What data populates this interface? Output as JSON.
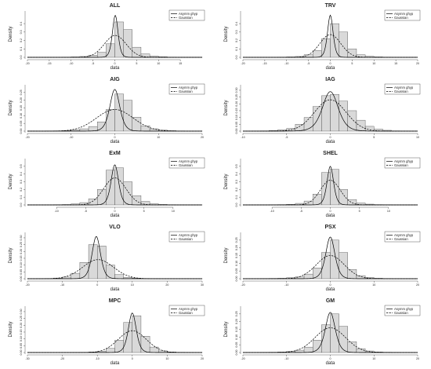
{
  "chart_data": [
    {
      "type": "histogram",
      "title": "ALL",
      "xlabel": "data",
      "ylabel": "Density",
      "xlim": [
        -20,
        20
      ],
      "x_ticks": [
        "-20",
        "-15",
        "-10",
        "-5",
        "0",
        "5",
        "10",
        "15"
      ],
      "y_ticks": [
        "0.0",
        "0.1",
        "0.2",
        "0.3",
        "0.4"
      ],
      "ylim": [
        0,
        0.55
      ],
      "bins": [
        -20,
        -18,
        -16,
        -14,
        -12,
        -10,
        -8,
        -6,
        -4,
        -2,
        0,
        2,
        4,
        6,
        8,
        10,
        12,
        14,
        16,
        18,
        20
      ],
      "density": [
        0.0005,
        0.0005,
        0.001,
        0.001,
        0.002,
        0.005,
        0.01,
        0.025,
        0.06,
        0.16,
        0.42,
        0.33,
        0.12,
        0.04,
        0.015,
        0.006,
        0.002,
        0.001,
        0.0005,
        0.0005
      ],
      "curves": [
        {
          "name": "Asymm ghyp",
          "style": "solid",
          "mu": 0.1,
          "scale": 0.85,
          "peak": 0.5
        },
        {
          "name": "Gaussian",
          "style": "dashed",
          "mu": 0.1,
          "sd": 2.5,
          "peak": 0.26
        }
      ],
      "legend_position": "top-right"
    },
    {
      "type": "histogram",
      "title": "TRV",
      "xlabel": "data",
      "ylabel": "Density",
      "xlim": [
        -20,
        20
      ],
      "x_ticks": [
        "-20",
        "-15",
        "-10",
        "-5",
        "0",
        "5",
        "10",
        "15",
        "20"
      ],
      "y_ticks": [
        "0.0",
        "0.1",
        "0.2",
        "0.3",
        "0.4"
      ],
      "ylim": [
        0,
        0.55
      ],
      "bins": [
        -20,
        -18,
        -16,
        -14,
        -12,
        -10,
        -8,
        -6,
        -4,
        -2,
        0,
        2,
        4,
        6,
        8,
        10,
        12,
        14,
        16,
        18,
        20
      ],
      "density": [
        0.0005,
        0.0005,
        0.001,
        0.001,
        0.002,
        0.005,
        0.01,
        0.03,
        0.08,
        0.22,
        0.4,
        0.3,
        0.1,
        0.03,
        0.012,
        0.005,
        0.002,
        0.001,
        0.0005,
        0.0005
      ],
      "curves": [
        {
          "name": "Asymm ghyp",
          "style": "solid",
          "mu": 0.0,
          "scale": 0.85,
          "peak": 0.5
        },
        {
          "name": "Gaussian",
          "style": "dashed",
          "mu": 0.0,
          "sd": 2.4,
          "peak": 0.27
        }
      ],
      "legend_position": "top-right"
    },
    {
      "type": "histogram",
      "title": "AIG",
      "xlabel": "data",
      "ylabel": "Density",
      "xlim": [
        -20,
        20
      ],
      "x_ticks": [
        "-20",
        "-10",
        "0",
        "10",
        "20"
      ],
      "y_ticks": [
        "0.00",
        "0.05",
        "0.10",
        "0.15",
        "0.20",
        "0.25"
      ],
      "ylim": [
        0,
        0.3
      ],
      "bins": [
        -20,
        -18,
        -16,
        -14,
        -12,
        -10,
        -8,
        -6,
        -4,
        -2,
        0,
        2,
        4,
        6,
        8,
        10,
        12,
        14,
        16,
        18,
        20
      ],
      "density": [
        0.0005,
        0.0005,
        0.001,
        0.002,
        0.004,
        0.008,
        0.015,
        0.03,
        0.06,
        0.14,
        0.24,
        0.2,
        0.09,
        0.035,
        0.015,
        0.006,
        0.003,
        0.001,
        0.0005,
        0.0005
      ],
      "curves": [
        {
          "name": "Asymm ghyp",
          "style": "solid",
          "mu": 0.0,
          "scale": 1.5,
          "peak": 0.27
        },
        {
          "name": "Gaussian",
          "style": "dashed",
          "mu": 0.0,
          "sd": 4.2,
          "peak": 0.14
        }
      ],
      "legend_position": "top-right"
    },
    {
      "type": "histogram",
      "title": "IAG",
      "xlabel": "data",
      "ylabel": "Density",
      "xlim": [
        -10,
        10
      ],
      "x_ticks": [
        "-10",
        "-5",
        "0",
        "5",
        "10"
      ],
      "y_ticks": [
        "0.00",
        "0.05",
        "0.10",
        "0.15",
        "0.20",
        "0.25",
        "0.30"
      ],
      "ylim": [
        0,
        0.34
      ],
      "bins": [
        -10,
        -9,
        -8,
        -7,
        -6,
        -5,
        -4,
        -3,
        -2,
        -1,
        0,
        1,
        2,
        3,
        4,
        5,
        6,
        7,
        8,
        9,
        10
      ],
      "density": [
        0.0005,
        0.001,
        0.002,
        0.005,
        0.01,
        0.02,
        0.05,
        0.1,
        0.18,
        0.26,
        0.27,
        0.22,
        0.15,
        0.08,
        0.035,
        0.015,
        0.006,
        0.002,
        0.001,
        0.0005
      ],
      "curves": [
        {
          "name": "Asymm ghyp",
          "style": "solid",
          "mu": 0.0,
          "scale": 1.2,
          "peak": 0.29
        },
        {
          "name": "Gaussian",
          "style": "dashed",
          "mu": 0.0,
          "sd": 1.8,
          "peak": 0.23
        }
      ],
      "legend_position": "top-right"
    },
    {
      "type": "histogram",
      "title": "ExM",
      "xlabel": "data",
      "ylabel": "Density",
      "xlim": [
        -15,
        15
      ],
      "x_ticks": [
        "-10",
        "-5",
        "0",
        "5",
        "10"
      ],
      "y_ticks": [
        "0.0",
        "0.1",
        "0.2",
        "0.3",
        "0.4",
        "0.5"
      ],
      "ylim": [
        0,
        0.6
      ],
      "bins": [
        -15,
        -13.5,
        -12,
        -10.5,
        -9,
        -7.5,
        -6,
        -4.5,
        -3,
        -1.5,
        0,
        1.5,
        3,
        4.5,
        6,
        7.5,
        9,
        10.5,
        12,
        13.5,
        15
      ],
      "density": [
        0.0005,
        0.0005,
        0.001,
        0.002,
        0.005,
        0.012,
        0.03,
        0.08,
        0.2,
        0.45,
        0.48,
        0.3,
        0.12,
        0.045,
        0.015,
        0.006,
        0.002,
        0.001,
        0.0005,
        0.0005
      ],
      "curves": [
        {
          "name": "Asymm ghyp",
          "style": "solid",
          "mu": 0.0,
          "scale": 0.85,
          "peak": 0.52
        },
        {
          "name": "Gaussian",
          "style": "dashed",
          "mu": 0.0,
          "sd": 1.9,
          "peak": 0.35
        }
      ],
      "legend_position": "top-right"
    },
    {
      "type": "histogram",
      "title": "SHEL",
      "xlabel": "data",
      "ylabel": "Density",
      "xlim": [
        -15,
        15
      ],
      "x_ticks": [
        "-10",
        "-5",
        "0",
        "5",
        "10"
      ],
      "y_ticks": [
        "0.0",
        "0.1",
        "0.2",
        "0.3",
        "0.4",
        "0.5"
      ],
      "ylim": [
        0,
        0.6
      ],
      "bins": [
        -15,
        -13.5,
        -12,
        -10.5,
        -9,
        -7.5,
        -6,
        -4.5,
        -3,
        -1.5,
        0,
        1.5,
        3,
        4.5,
        6,
        7.5,
        9,
        10.5,
        12,
        13.5,
        15
      ],
      "density": [
        0.0005,
        0.0005,
        0.001,
        0.002,
        0.004,
        0.008,
        0.02,
        0.05,
        0.14,
        0.42,
        0.46,
        0.2,
        0.07,
        0.025,
        0.01,
        0.004,
        0.002,
        0.001,
        0.0005,
        0.0005
      ],
      "curves": [
        {
          "name": "Asymm ghyp",
          "style": "solid",
          "mu": 0.0,
          "scale": 0.75,
          "peak": 0.5
        },
        {
          "name": "Gaussian",
          "style": "dashed",
          "mu": 0.0,
          "sd": 1.7,
          "peak": 0.32
        }
      ],
      "legend_position": "top-right"
    },
    {
      "type": "histogram",
      "title": "VLO",
      "xlabel": "data",
      "ylabel": "Density",
      "xlim": [
        -20,
        30
      ],
      "x_ticks": [
        "-20",
        "-10",
        "0",
        "10",
        "20",
        "30"
      ],
      "y_ticks": [
        "0.00",
        "0.05",
        "0.10",
        "0.15",
        "0.20",
        "0.25",
        "0.30"
      ],
      "ylim": [
        0,
        0.34
      ],
      "bins": [
        -20,
        -17.5,
        -15,
        -12.5,
        -10,
        -7.5,
        -5,
        -2.5,
        0,
        2.5,
        5,
        7.5,
        10,
        12.5,
        15,
        17.5,
        20,
        22.5,
        25,
        27.5,
        30
      ],
      "density": [
        0.0005,
        0.001,
        0.002,
        0.005,
        0.012,
        0.04,
        0.12,
        0.25,
        0.24,
        0.1,
        0.03,
        0.01,
        0.004,
        0.002,
        0.001,
        0.0005,
        0.0005,
        0.0005,
        0.0005,
        0.0005
      ],
      "curves": [
        {
          "name": "Asymm ghyp",
          "style": "solid",
          "mu": -0.3,
          "scale": 1.6,
          "peak": 0.31
        },
        {
          "name": "Gaussian",
          "style": "dashed",
          "mu": 0.2,
          "sd": 4.4,
          "peak": 0.14
        }
      ],
      "legend_position": "top-right"
    },
    {
      "type": "histogram",
      "title": "PSX",
      "xlabel": "data",
      "ylabel": "Density",
      "xlim": [
        -20,
        20
      ],
      "x_ticks": [
        "-20",
        "-10",
        "0",
        "10",
        "20"
      ],
      "y_ticks": [
        "0.00",
        "0.05",
        "0.10",
        "0.15",
        "0.20",
        "0.25"
      ],
      "ylim": [
        0,
        0.3
      ],
      "bins": [
        -20,
        -18,
        -16,
        -14,
        -12,
        -10,
        -8,
        -6,
        -4,
        -2,
        0,
        2,
        4,
        6,
        8,
        10,
        12,
        14,
        16,
        18,
        20
      ],
      "density": [
        0.0005,
        0.0005,
        0.001,
        0.002,
        0.003,
        0.006,
        0.012,
        0.03,
        0.07,
        0.17,
        0.25,
        0.17,
        0.06,
        0.02,
        0.008,
        0.003,
        0.001,
        0.0005,
        0.0005,
        0.0005
      ],
      "curves": [
        {
          "name": "Asymm ghyp",
          "style": "solid",
          "mu": 0.0,
          "scale": 1.4,
          "peak": 0.27
        },
        {
          "name": "Gaussian",
          "style": "dashed",
          "mu": 0.0,
          "sd": 3.2,
          "peak": 0.15
        }
      ],
      "legend_position": "top-right"
    },
    {
      "type": "histogram",
      "title": "MPC",
      "xlabel": "data",
      "ylabel": "Density",
      "xlim": [
        -30,
        20
      ],
      "x_ticks": [
        "-30",
        "-20",
        "-10",
        "0",
        "10",
        "20"
      ],
      "y_ticks": [
        "0.00",
        "0.05",
        "0.10",
        "0.15",
        "0.20",
        "0.25",
        "0.30"
      ],
      "ylim": [
        0,
        0.34
      ],
      "bins": [
        -30,
        -27.5,
        -25,
        -22.5,
        -20,
        -17.5,
        -15,
        -12.5,
        -10,
        -7.5,
        -5,
        -2.5,
        0,
        2.5,
        5,
        7.5,
        10,
        12.5,
        15,
        17.5,
        20
      ],
      "density": [
        0.0005,
        0.0005,
        0.0005,
        0.0005,
        0.0005,
        0.001,
        0.002,
        0.004,
        0.01,
        0.03,
        0.09,
        0.22,
        0.27,
        0.12,
        0.04,
        0.012,
        0.004,
        0.002,
        0.001,
        0.0005
      ],
      "curves": [
        {
          "name": "Asymm ghyp",
          "style": "solid",
          "mu": 0.0,
          "scale": 1.5,
          "peak": 0.29
        },
        {
          "name": "Gaussian",
          "style": "dashed",
          "mu": 0.0,
          "sd": 4.0,
          "peak": 0.16
        }
      ],
      "legend_position": "top-right"
    },
    {
      "type": "histogram",
      "title": "GM",
      "xlabel": "data",
      "ylabel": "Density",
      "xlim": [
        -20,
        20
      ],
      "x_ticks": [
        "-20",
        "-10",
        "0",
        "10",
        "20"
      ],
      "y_ticks": [
        "0.00",
        "0.05",
        "0.10",
        "0.15",
        "0.20",
        "0.25"
      ],
      "ylim": [
        0,
        0.3
      ],
      "bins": [
        -20,
        -18,
        -16,
        -14,
        -12,
        -10,
        -8,
        -6,
        -4,
        -2,
        0,
        2,
        4,
        6,
        8,
        10,
        12,
        14,
        16,
        18,
        20
      ],
      "density": [
        0.0005,
        0.0005,
        0.001,
        0.002,
        0.004,
        0.008,
        0.015,
        0.035,
        0.08,
        0.18,
        0.25,
        0.17,
        0.07,
        0.025,
        0.01,
        0.004,
        0.002,
        0.001,
        0.0005,
        0.0005
      ],
      "curves": [
        {
          "name": "Asymm ghyp",
          "style": "solid",
          "mu": 0.0,
          "scale": 1.5,
          "peak": 0.26
        },
        {
          "name": "Gaussian",
          "style": "dashed",
          "mu": 0.0,
          "sd": 3.5,
          "peak": 0.16
        }
      ],
      "legend_position": "top-right"
    }
  ]
}
